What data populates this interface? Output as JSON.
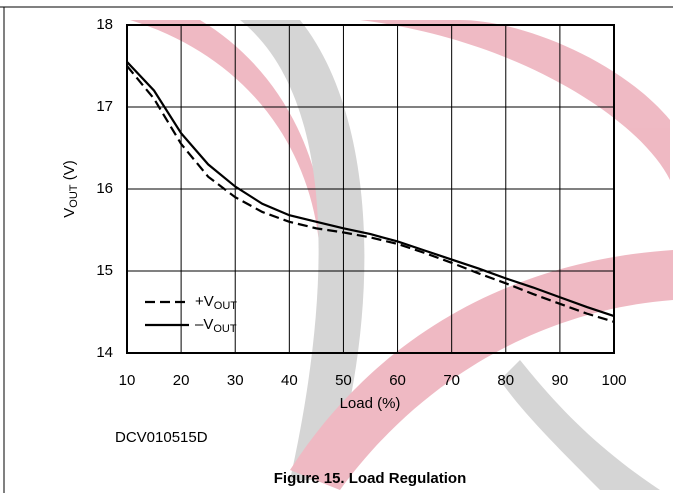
{
  "chart_data": {
    "type": "line",
    "title": "Figure 15. Load Regulation",
    "note": "DCV010515D",
    "xlabel": "Load (%)",
    "ylabel": {
      "main": "V",
      "sub": "OUT",
      "rest": " (V)"
    },
    "x": [
      10,
      15,
      20,
      25,
      30,
      35,
      40,
      45,
      50,
      55,
      60,
      65,
      70,
      75,
      80,
      85,
      90,
      95,
      100
    ],
    "series": [
      {
        "name": "+V",
        "name_sub": "OUT",
        "color": "#000000",
        "dash": true,
        "values": [
          17.5,
          17.1,
          16.55,
          16.15,
          15.9,
          15.72,
          15.6,
          15.52,
          15.47,
          15.41,
          15.33,
          15.22,
          15.1,
          14.97,
          14.85,
          14.72,
          14.6,
          14.48,
          14.38
        ]
      },
      {
        "name": "–V",
        "name_sub": "OUT",
        "color": "#000000",
        "dash": false,
        "values": [
          17.55,
          17.2,
          16.68,
          16.3,
          16.03,
          15.82,
          15.68,
          15.6,
          15.52,
          15.45,
          15.36,
          15.25,
          15.14,
          15.03,
          14.91,
          14.8,
          14.68,
          14.56,
          14.45
        ]
      }
    ],
    "xlim": [
      10,
      100
    ],
    "xticks": [
      10,
      20,
      30,
      40,
      50,
      60,
      70,
      80,
      90,
      100
    ],
    "ylim": [
      14,
      18
    ],
    "yticks": [
      14,
      15,
      16,
      17,
      18
    ],
    "grid": true,
    "legend": "lower left"
  }
}
